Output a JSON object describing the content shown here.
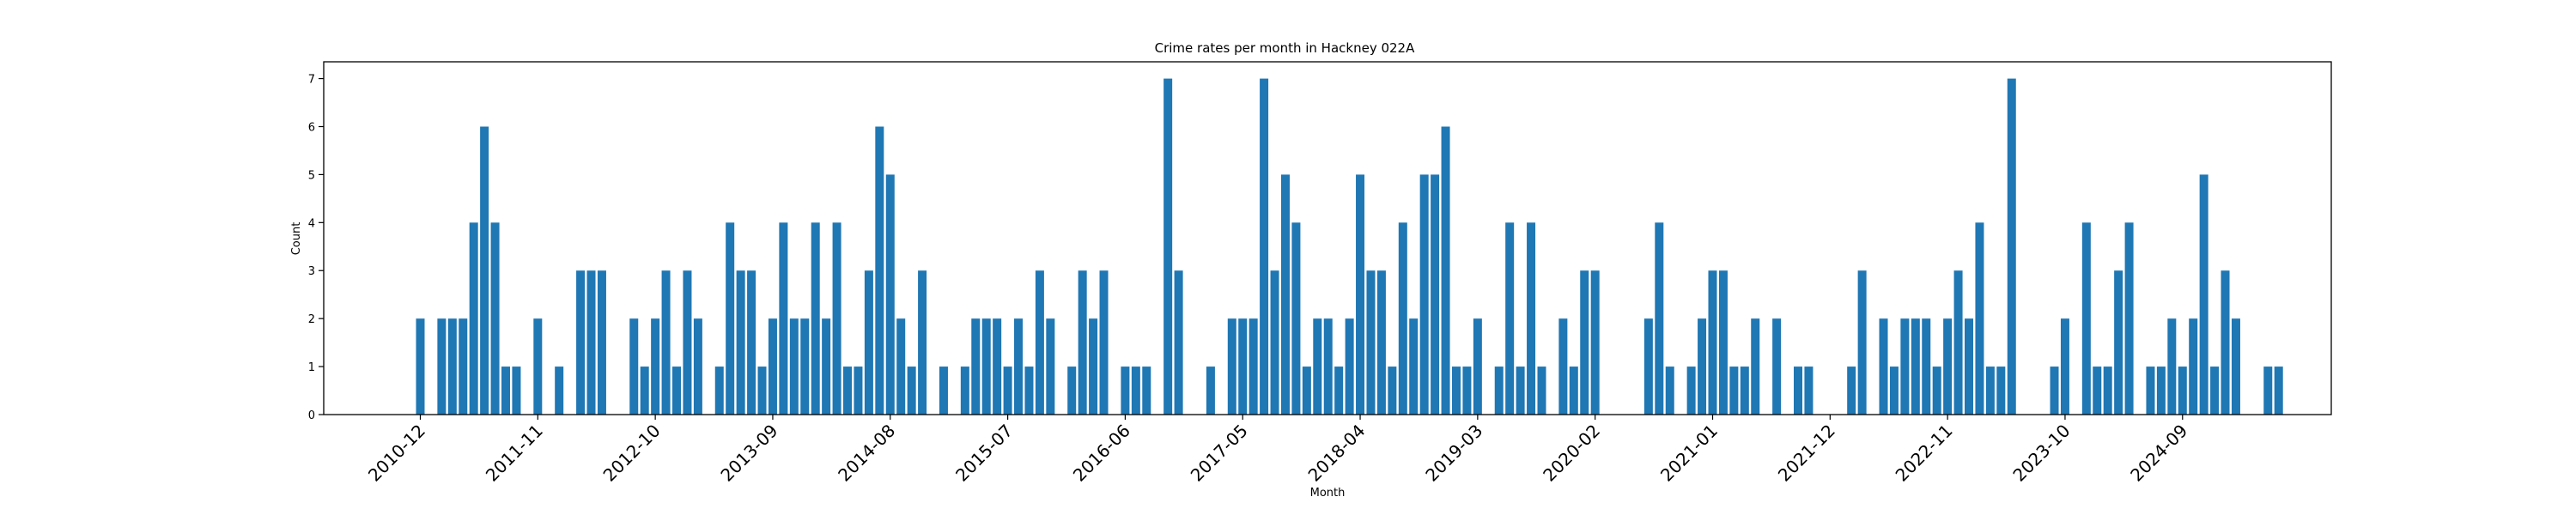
{
  "chart_data": {
    "type": "bar",
    "title": "Crime rates per month in Hackney 022A",
    "xlabel": "Month",
    "ylabel": "Count",
    "ylim": [
      0,
      7.35
    ],
    "yticks": [
      0,
      1,
      2,
      3,
      4,
      5,
      6,
      7
    ],
    "xtick_labels": [
      "2010-12",
      "2011-11",
      "2012-10",
      "2013-09",
      "2014-08",
      "2015-07",
      "2016-06",
      "2017-05",
      "2018-04",
      "2019-03",
      "2020-02",
      "2021-01",
      "2021-12",
      "2022-11",
      "2023-10",
      "2024-09"
    ],
    "grid": false,
    "bar_color": "#1f77b4",
    "values": [
      2,
      0,
      2,
      2,
      2,
      4,
      6,
      4,
      1,
      1,
      0,
      2,
      0,
      1,
      0,
      3,
      3,
      3,
      0,
      0,
      2,
      1,
      2,
      3,
      1,
      3,
      2,
      0,
      1,
      4,
      3,
      3,
      1,
      2,
      4,
      2,
      2,
      4,
      2,
      4,
      1,
      1,
      3,
      6,
      5,
      2,
      1,
      3,
      0,
      1,
      0,
      1,
      2,
      2,
      2,
      1,
      2,
      1,
      3,
      2,
      0,
      1,
      3,
      2,
      3,
      0,
      1,
      1,
      1,
      0,
      7,
      3,
      0,
      0,
      1,
      0,
      2,
      2,
      2,
      7,
      3,
      5,
      4,
      1,
      2,
      2,
      1,
      2,
      5,
      3,
      3,
      1,
      4,
      2,
      5,
      5,
      6,
      1,
      1,
      2,
      0,
      1,
      4,
      1,
      4,
      1,
      0,
      2,
      1,
      3,
      3,
      0,
      0,
      0,
      0,
      2,
      4,
      1,
      0,
      1,
      2,
      3,
      3,
      1,
      1,
      2,
      0,
      2,
      0,
      1,
      1,
      0,
      0,
      0,
      1,
      3,
      0,
      2,
      1,
      2,
      2,
      2,
      1,
      2,
      3,
      2,
      4,
      1,
      1,
      7,
      0,
      0,
      0,
      1,
      2,
      0,
      4,
      1,
      1,
      3,
      4,
      0,
      1,
      1,
      2,
      1,
      2,
      5,
      1,
      3,
      2,
      0,
      0,
      1,
      1
    ]
  }
}
